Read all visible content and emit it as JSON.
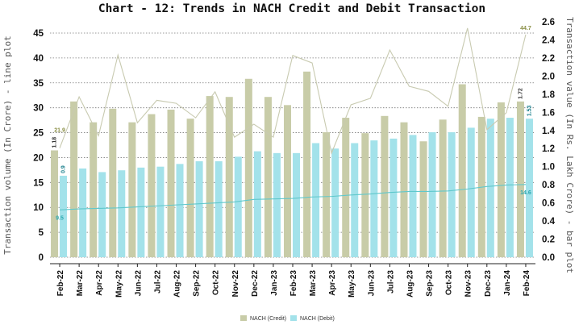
{
  "chart_data": {
    "type": "bar",
    "title": "Chart - 12: Trends in NACH Credit and Debit Transaction",
    "ylabel_left": "Transaction volume (In Crore) - line plot",
    "ylabel_right": "Transaction value (In Rs. Lakh Crore) - bar plot",
    "ylim_left": [
      0,
      45
    ],
    "yticks_left": [
      0,
      5,
      10,
      15,
      20,
      25,
      30,
      35,
      40,
      45
    ],
    "ylim_right": [
      0,
      2.6
    ],
    "yticks_right": [
      "0.0",
      "0.2",
      "0.4",
      "0.6",
      "0.8",
      "1.0",
      "1.2",
      "1.4",
      "1.6",
      "1.8",
      "2.0",
      "2.2",
      "2.4",
      "2.6"
    ],
    "grid": true,
    "legend_placement": "bottom-center",
    "categories": [
      "Feb-22",
      "Mar-22",
      "Apr-22",
      "May-22",
      "Jun-22",
      "Jul-22",
      "Aug-22",
      "Sep-22",
      "Oct-22",
      "Nov-22",
      "Dec-22",
      "Jan-23",
      "Feb-23",
      "Mar-23",
      "Apr-23",
      "May-23",
      "Jun-23",
      "Jul-23",
      "Aug-23",
      "Sep-23",
      "Oct-23",
      "Nov-23",
      "Dec-23",
      "Jan-24",
      "Feb-24"
    ],
    "bars": [
      {
        "name": "NACH (Credit)",
        "color": "#c8cca8",
        "axis": "right",
        "values": [
          1.18,
          1.72,
          1.49,
          1.64,
          1.49,
          1.58,
          1.63,
          1.53,
          1.78,
          1.77,
          1.97,
          1.77,
          1.68,
          2.05,
          1.38,
          1.54,
          1.37,
          1.56,
          1.49,
          1.28,
          1.52,
          1.91,
          1.55,
          1.71,
          1.72
        ],
        "labels": {
          "first": "1.18",
          "last": "1.72"
        }
      },
      {
        "name": "NACH (Debit)",
        "color": "#a3e2ea",
        "axis": "right",
        "values": [
          0.9,
          0.98,
          0.94,
          0.96,
          0.99,
          1.0,
          1.03,
          1.06,
          1.06,
          1.11,
          1.17,
          1.15,
          1.15,
          1.26,
          1.2,
          1.26,
          1.29,
          1.31,
          1.35,
          1.38,
          1.38,
          1.43,
          1.53,
          1.54,
          1.53
        ],
        "labels": {
          "first": "0.9",
          "last": "1.53"
        }
      }
    ],
    "lines": [
      {
        "color": "#c8cab0",
        "label_color": "#8a8f45",
        "axis": "left",
        "values": [
          21.9,
          32.2,
          24.4,
          40.6,
          27.0,
          31.5,
          30.9,
          28.0,
          33.2,
          24.1,
          26.7,
          24.1,
          40.5,
          39.0,
          20.9,
          30.6,
          31.9,
          41.6,
          34.3,
          33.3,
          30.3,
          46.0,
          25.6,
          29.0,
          44.7
        ],
        "labels": {
          "first": "21.9",
          "last": "44.7"
        }
      },
      {
        "color": "#5fc8cc",
        "label_color": "#2aa8b0",
        "axis": "left",
        "values": [
          9.5,
          9.7,
          9.8,
          9.9,
          10.1,
          10.3,
          10.5,
          10.7,
          10.9,
          11.1,
          11.6,
          11.7,
          11.8,
          12.1,
          12.2,
          12.5,
          12.7,
          13.0,
          13.2,
          13.2,
          13.3,
          13.7,
          14.2,
          14.5,
          14.6
        ],
        "labels": {
          "first": "9.5",
          "last": "14.6"
        }
      }
    ]
  }
}
